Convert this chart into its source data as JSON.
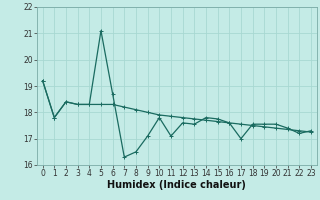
{
  "title": "",
  "xlabel": "Humidex (Indice chaleur)",
  "ylabel": "",
  "bg_color": "#c4ebe6",
  "grid_color": "#a8d8d2",
  "line_color": "#1a6b60",
  "x_values": [
    0,
    1,
    2,
    3,
    4,
    5,
    6,
    7,
    8,
    9,
    10,
    11,
    12,
    13,
    14,
    15,
    16,
    17,
    18,
    19,
    20,
    21,
    22,
    23
  ],
  "y_series1": [
    19.2,
    17.8,
    18.4,
    18.3,
    18.3,
    21.1,
    18.7,
    16.3,
    16.5,
    17.1,
    17.8,
    17.1,
    17.6,
    17.55,
    17.8,
    17.75,
    17.6,
    17.0,
    17.55,
    17.55,
    17.55,
    17.4,
    17.2,
    17.3
  ],
  "y_series2": [
    19.2,
    17.8,
    18.4,
    18.3,
    18.3,
    18.3,
    18.3,
    18.2,
    18.1,
    18.0,
    17.9,
    17.85,
    17.8,
    17.75,
    17.7,
    17.65,
    17.6,
    17.55,
    17.5,
    17.45,
    17.4,
    17.35,
    17.3,
    17.25
  ],
  "ylim": [
    16,
    22
  ],
  "xlim": [
    -0.5,
    23.5
  ],
  "yticks": [
    16,
    17,
    18,
    19,
    20,
    21,
    22
  ],
  "xticks": [
    0,
    1,
    2,
    3,
    4,
    5,
    6,
    7,
    8,
    9,
    10,
    11,
    12,
    13,
    14,
    15,
    16,
    17,
    18,
    19,
    20,
    21,
    22,
    23
  ],
  "tick_label_fontsize": 5.5,
  "xlabel_fontsize": 7.0,
  "markersize": 2.5,
  "linewidth": 0.9
}
